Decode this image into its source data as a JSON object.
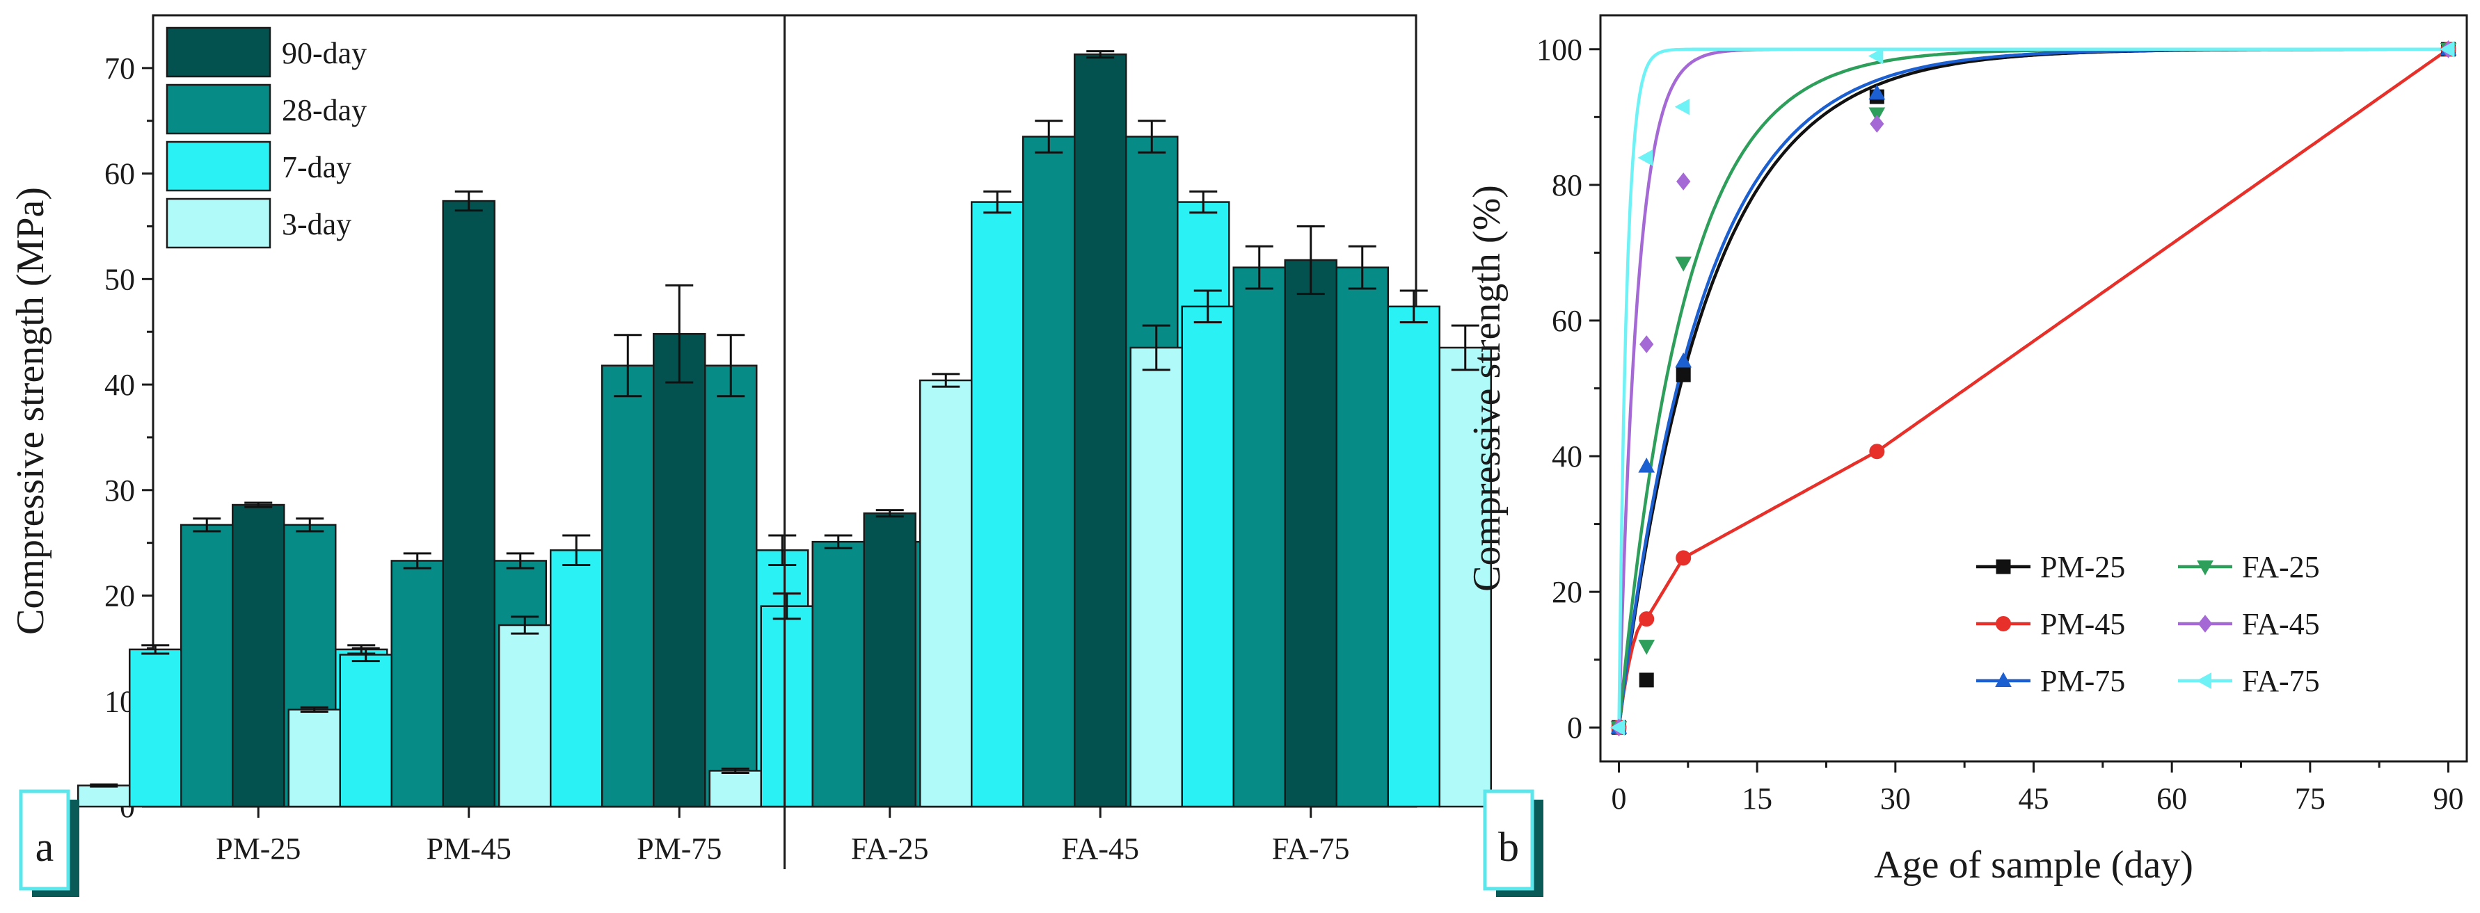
{
  "chart_data": [
    {
      "panel": "a",
      "type": "bar",
      "title": "",
      "ylabel": "Compressive strength (MPa)",
      "xlabel": "",
      "ylim": [
        0,
        75
      ],
      "yticks": [
        0,
        10,
        20,
        30,
        40,
        50,
        60,
        70
      ],
      "categories": [
        "PM-25",
        "PM-45",
        "PM-75",
        "FA-25",
        "FA-45",
        "FA-75"
      ],
      "group_separator_after": "PM-75",
      "legend_position": "top-left",
      "series": [
        {
          "name": "90-day",
          "color": "#03524f",
          "values": [
            28.6,
            57.4,
            44.8,
            27.8,
            71.3,
            51.8
          ],
          "errors": [
            0.2,
            0.9,
            4.6,
            0.3,
            0.3,
            3.2
          ]
        },
        {
          "name": "28-day",
          "color": "#078b87",
          "values": [
            26.7,
            23.3,
            41.8,
            25.1,
            63.5,
            51.1
          ],
          "errors": [
            0.6,
            0.7,
            2.9,
            0.6,
            1.5,
            2.0
          ]
        },
        {
          "name": "7-day",
          "color": "#2af2f4",
          "values": [
            14.9,
            14.4,
            24.3,
            19.0,
            57.3,
            47.4
          ],
          "errors": [
            0.4,
            0.6,
            1.4,
            1.2,
            1.0,
            1.5
          ]
        },
        {
          "name": "3-day",
          "color": "#b1fafa",
          "values": [
            2.0,
            9.2,
            17.2,
            3.4,
            40.4,
            43.5
          ],
          "errors": [
            0.1,
            0.2,
            0.8,
            0.2,
            0.6,
            2.1
          ]
        }
      ]
    },
    {
      "panel": "b",
      "type": "scatter",
      "title": "",
      "xlabel": "Age of sample (day)",
      "ylabel": "Compressive strength (%)",
      "xlim": [
        -2,
        92
      ],
      "ylim": [
        -5,
        105
      ],
      "xticks": [
        0,
        15,
        30,
        45,
        60,
        75,
        90
      ],
      "yticks": [
        0,
        20,
        40,
        60,
        80,
        100
      ],
      "legend_position": "bottom-right",
      "series": [
        {
          "name": "PM-25",
          "color": "#111111",
          "marker": "square",
          "x": [
            0,
            3,
            7,
            28,
            90
          ],
          "y": [
            0,
            7,
            52,
            93,
            100
          ],
          "fit_k": 0.105
        },
        {
          "name": "PM-45",
          "color": "#e8302a",
          "marker": "circle",
          "x": [
            0,
            3,
            7,
            28,
            90
          ],
          "y": [
            0,
            16,
            25,
            40.7,
            100
          ],
          "fit_k": 0
        },
        {
          "name": "PM-75",
          "color": "#1c5fd0",
          "marker": "triangle-up",
          "x": [
            0,
            3,
            7,
            28,
            90
          ],
          "y": [
            0,
            38.5,
            54,
            93.5,
            100
          ],
          "fit_k": 0.11
        },
        {
          "name": "FA-25",
          "color": "#2e9e5b",
          "marker": "triangle-down",
          "x": [
            0,
            3,
            7,
            28,
            90
          ],
          "y": [
            0,
            12,
            68.5,
            90.5,
            100
          ],
          "fit_k": 0.14
        },
        {
          "name": "FA-45",
          "color": "#a569d6",
          "marker": "diamond",
          "x": [
            0,
            3,
            7,
            28,
            90
          ],
          "y": [
            0,
            56.5,
            80.5,
            89,
            100
          ],
          "fit_k": 0.5
        },
        {
          "name": "FA-75",
          "color": "#6ff2f6",
          "marker": "triangle-left",
          "x": [
            0,
            3,
            7,
            28,
            90
          ],
          "y": [
            0,
            84,
            91.5,
            99,
            100
          ],
          "fit_k": 1.2
        }
      ]
    }
  ]
}
